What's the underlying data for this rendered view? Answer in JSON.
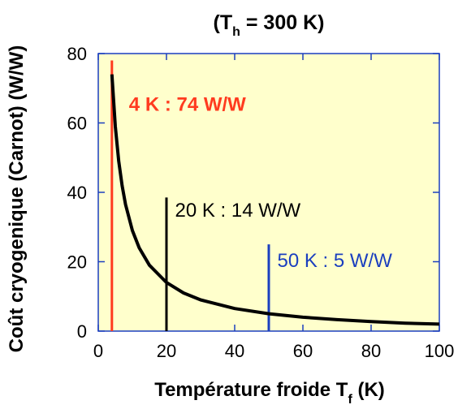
{
  "chart_data": {
    "type": "line",
    "title": "(T",
    "title_sub": "h",
    "title_rest": " = 300 K)",
    "xlabel": "Température froide T",
    "xlabel_sub": "f",
    "xlabel_rest": " (K)",
    "ylabel": "Coût cryogenique (Carnot) (W/W)",
    "xlim": [
      0,
      100
    ],
    "ylim": [
      0,
      80
    ],
    "x_ticks": [
      "0",
      "20",
      "40",
      "60",
      "80",
      "100"
    ],
    "y_ticks": [
      "0",
      "20",
      "40",
      "60",
      "80"
    ],
    "plot_background": "#FFFFCC",
    "grid": false,
    "series": [
      {
        "line_color": "#000000",
        "hot_temperature_K": 300,
        "x": [
          4,
          5,
          6,
          7,
          8,
          10,
          12,
          15,
          20,
          25,
          30,
          40,
          50,
          60,
          70,
          80,
          90,
          100
        ],
        "y": [
          74,
          59,
          49,
          41.9,
          36.5,
          29,
          24,
          19,
          14,
          11,
          9,
          6.5,
          5,
          4,
          3.3,
          2.75,
          2.3,
          2
        ]
      }
    ],
    "annotations": [
      {
        "x": 4,
        "y_top": 78,
        "text": "4 K : 74 W/W",
        "color": "#FF3B1F",
        "bold": true,
        "label_x": 9,
        "label_y": 63.5
      },
      {
        "x": 20,
        "y_top": 38.5,
        "text": "20 K : 14 W/W",
        "color": "#000000",
        "bold": false,
        "label_x": 22.5,
        "label_y": 33
      },
      {
        "x": 50,
        "y_top": 25,
        "text": "50 K : 5 W/W",
        "color": "#1B3FBF",
        "bold": false,
        "label_x": 52.5,
        "label_y": 18.5
      }
    ]
  }
}
